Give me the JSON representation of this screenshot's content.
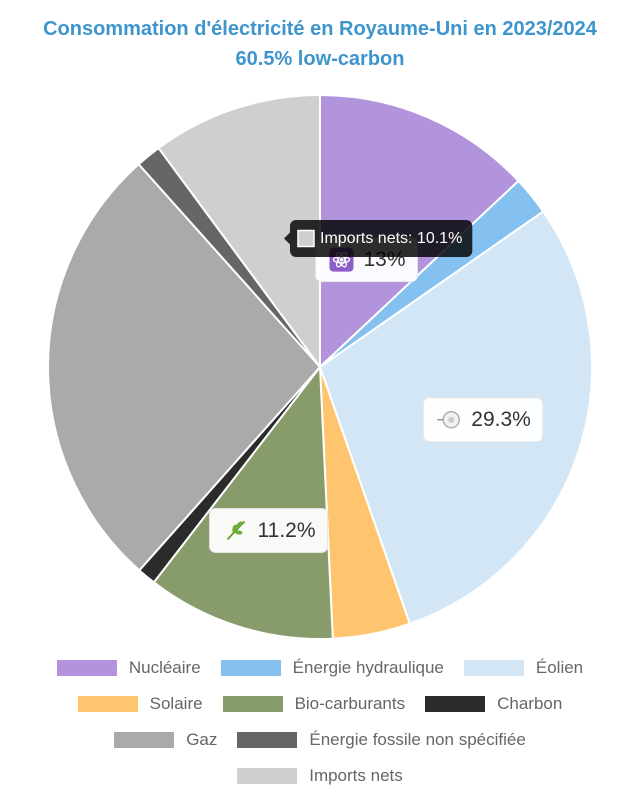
{
  "chart_data": {
    "type": "pie",
    "title": "Consommation d'électricité en Royaume-Uni en 2023/2024",
    "subtitle": "60.5% low-carbon",
    "categories": [
      "Nucléaire",
      "Énergie hydraulique",
      "Éolien",
      "Solaire",
      "Bio-carburants",
      "Charbon",
      "Gaz",
      "Énergie fossile non spécifiée",
      "Imports nets"
    ],
    "values": [
      13.0,
      2.3,
      29.3,
      4.6,
      11.2,
      1.1,
      26.8,
      1.5,
      10.1
    ],
    "colors": [
      "#b294dc",
      "#84c1f0",
      "#d2e6f6",
      "#ffc56e",
      "#889c6b",
      "#2b2b2b",
      "#aaaaaa",
      "#666666",
      "#cfcfcf"
    ],
    "data_labels": [
      {
        "category": "Nucléaire",
        "text": "13%",
        "icon": "atom-icon"
      },
      {
        "category": "Éolien",
        "text": "29.3%",
        "icon": "wind-turbine-icon"
      },
      {
        "category": "Bio-carburants",
        "text": "11.2%",
        "icon": "leaf-icon"
      }
    ],
    "tooltip": {
      "text": "Imports nets: 10.1%",
      "color": "#cfcfcf"
    },
    "legend": "bottom"
  }
}
